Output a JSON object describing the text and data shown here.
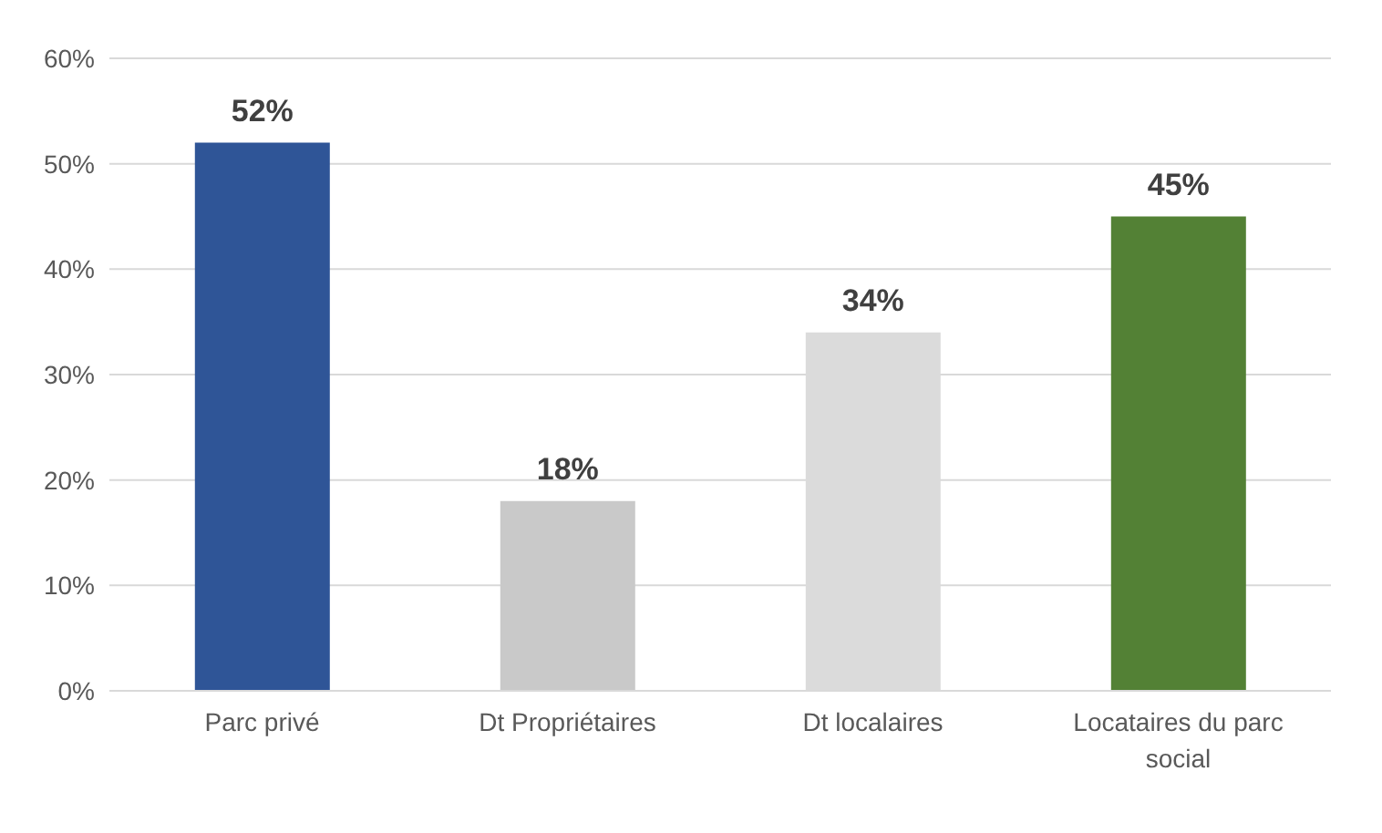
{
  "chart_data": {
    "type": "bar",
    "categories": [
      "Parc privé",
      "Dt Propriétaires",
      "Dt localaires",
      "Locataires du parc social"
    ],
    "values": [
      52,
      18,
      34,
      45
    ],
    "colors": [
      "#2f5597",
      "#c9c9c9",
      "#dbdbdb",
      "#538135"
    ],
    "value_labels": [
      "52%",
      "18%",
      "34%",
      "45%"
    ],
    "ylim": [
      0,
      60
    ],
    "yticks": [
      {
        "value": 0,
        "label": "0%"
      },
      {
        "value": 10,
        "label": "10%"
      },
      {
        "value": 20,
        "label": "20%"
      },
      {
        "value": 30,
        "label": "30%"
      },
      {
        "value": 40,
        "label": "40%"
      },
      {
        "value": 50,
        "label": "50%"
      },
      {
        "value": 60,
        "label": "60%"
      }
    ],
    "grid": "y",
    "legend": false
  }
}
